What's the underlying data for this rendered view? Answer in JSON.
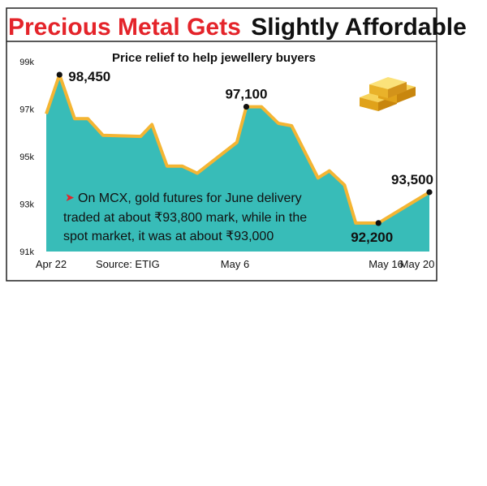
{
  "title": {
    "part1": "Precious Metal Gets",
    "part2": "Slightly Affordable"
  },
  "subtitle": "Price relief to help jewellery buyers",
  "source": "Source: ETIG",
  "annotation": {
    "bullet": "➤",
    "lines": [
      "On MCX, gold futures for June delivery",
      "traded at about ₹93,800 mark, while in the",
      "spot market, it was at about ₹93,000"
    ]
  },
  "colors": {
    "area": "#38bcb8",
    "line": "#f4b533",
    "accent": "#e4242a",
    "marker": "#111111"
  },
  "icon": "gold-bars-icon",
  "chart_data": {
    "type": "area",
    "title": "Precious Metal Gets Slightly Affordable",
    "subtitle": "Price relief to help jewellery buyers",
    "ylim": [
      91000,
      99000
    ],
    "y_ticks": [
      {
        "value": 91000,
        "label": "91k"
      },
      {
        "value": 93000,
        "label": "93k"
      },
      {
        "value": 95000,
        "label": "95k"
      },
      {
        "value": 97000,
        "label": "97k"
      },
      {
        "value": 99000,
        "label": "99k"
      }
    ],
    "x_ticks": [
      {
        "x": 0,
        "label": "Apr 22"
      },
      {
        "x": 10,
        "label": "May 6"
      },
      {
        "x": 18,
        "label": "May 16"
      },
      {
        "x": 20,
        "label": "May 20"
      }
    ],
    "x_range": [
      0,
      20.3
    ],
    "points": [
      {
        "x": 0.0,
        "y": 96800
      },
      {
        "x": 0.7,
        "y": 98450
      },
      {
        "x": 1.5,
        "y": 96600
      },
      {
        "x": 2.2,
        "y": 96600
      },
      {
        "x": 3.0,
        "y": 95900
      },
      {
        "x": 5.0,
        "y": 95850
      },
      {
        "x": 5.6,
        "y": 96350
      },
      {
        "x": 6.4,
        "y": 94600
      },
      {
        "x": 7.2,
        "y": 94600
      },
      {
        "x": 8.0,
        "y": 94300
      },
      {
        "x": 10.1,
        "y": 95600
      },
      {
        "x": 10.6,
        "y": 97100
      },
      {
        "x": 11.4,
        "y": 97100
      },
      {
        "x": 12.3,
        "y": 96400
      },
      {
        "x": 13.0,
        "y": 96300
      },
      {
        "x": 14.4,
        "y": 94100
      },
      {
        "x": 15.0,
        "y": 94400
      },
      {
        "x": 15.8,
        "y": 93800
      },
      {
        "x": 16.4,
        "y": 92200
      },
      {
        "x": 17.6,
        "y": 92200
      },
      {
        "x": 20.3,
        "y": 93500
      }
    ],
    "data_labels": [
      {
        "x": 0.7,
        "y": 98450,
        "text": "98,450",
        "anchor": "right"
      },
      {
        "x": 10.6,
        "y": 97100,
        "text": "97,100",
        "anchor": "above"
      },
      {
        "x": 17.6,
        "y": 92200,
        "text": "92,200",
        "anchor": "below"
      },
      {
        "x": 20.3,
        "y": 93500,
        "text": "93,500",
        "anchor": "above"
      }
    ]
  }
}
